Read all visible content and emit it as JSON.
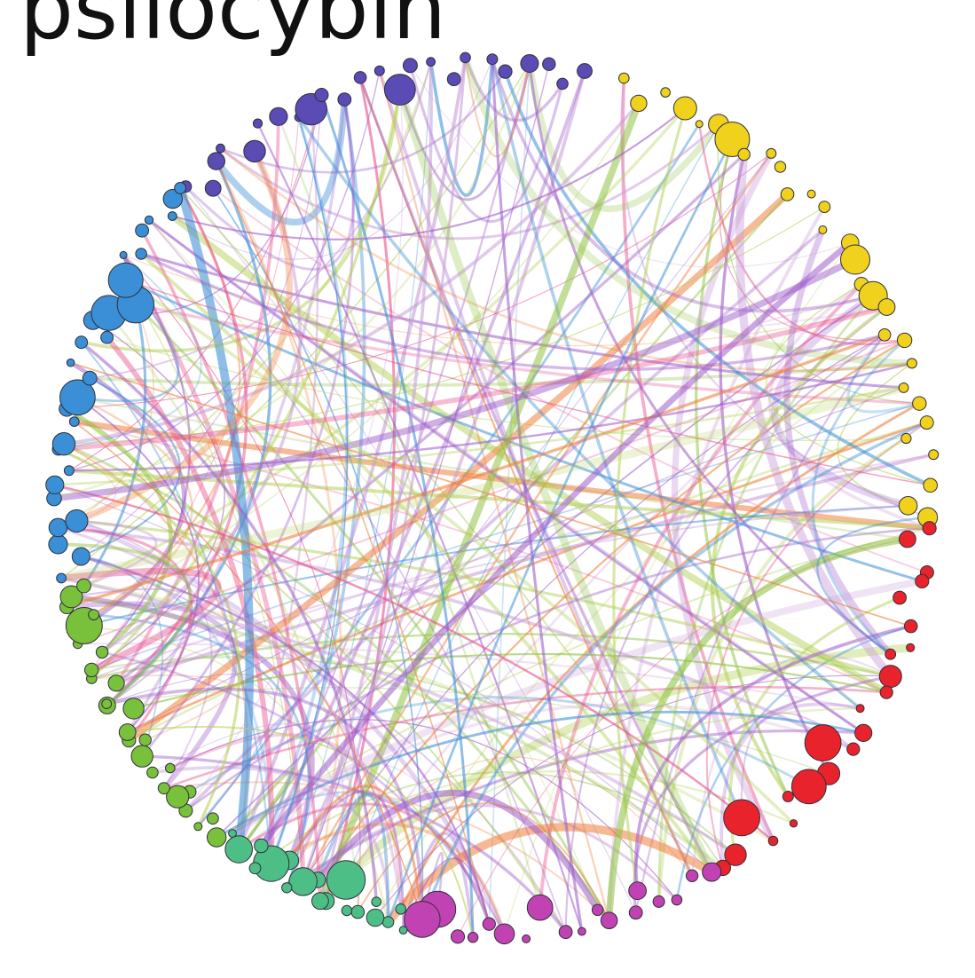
{
  "title": "psilocybin",
  "modules": [
    {
      "name": "purple",
      "color": "#5b4bb5",
      "nodes": 24
    },
    {
      "name": "yellow",
      "color": "#f0d21c",
      "nodes": 30
    },
    {
      "name": "red",
      "color": "#e8232c",
      "nodes": 22
    },
    {
      "name": "magenta",
      "color": "#c142b3",
      "nodes": 18
    },
    {
      "name": "teal",
      "color": "#4dbf86",
      "nodes": 20
    },
    {
      "name": "green",
      "color": "#79c13b",
      "nodes": 26
    },
    {
      "name": "blue",
      "color": "#3a8fd6",
      "nodes": 28
    }
  ],
  "edge_colors": [
    "#9b59c9",
    "#a05cc8",
    "#8fc241",
    "#3d8fd6",
    "#f07d3a",
    "#e84a8a",
    "#c79ad8",
    "#b6d25a"
  ]
}
